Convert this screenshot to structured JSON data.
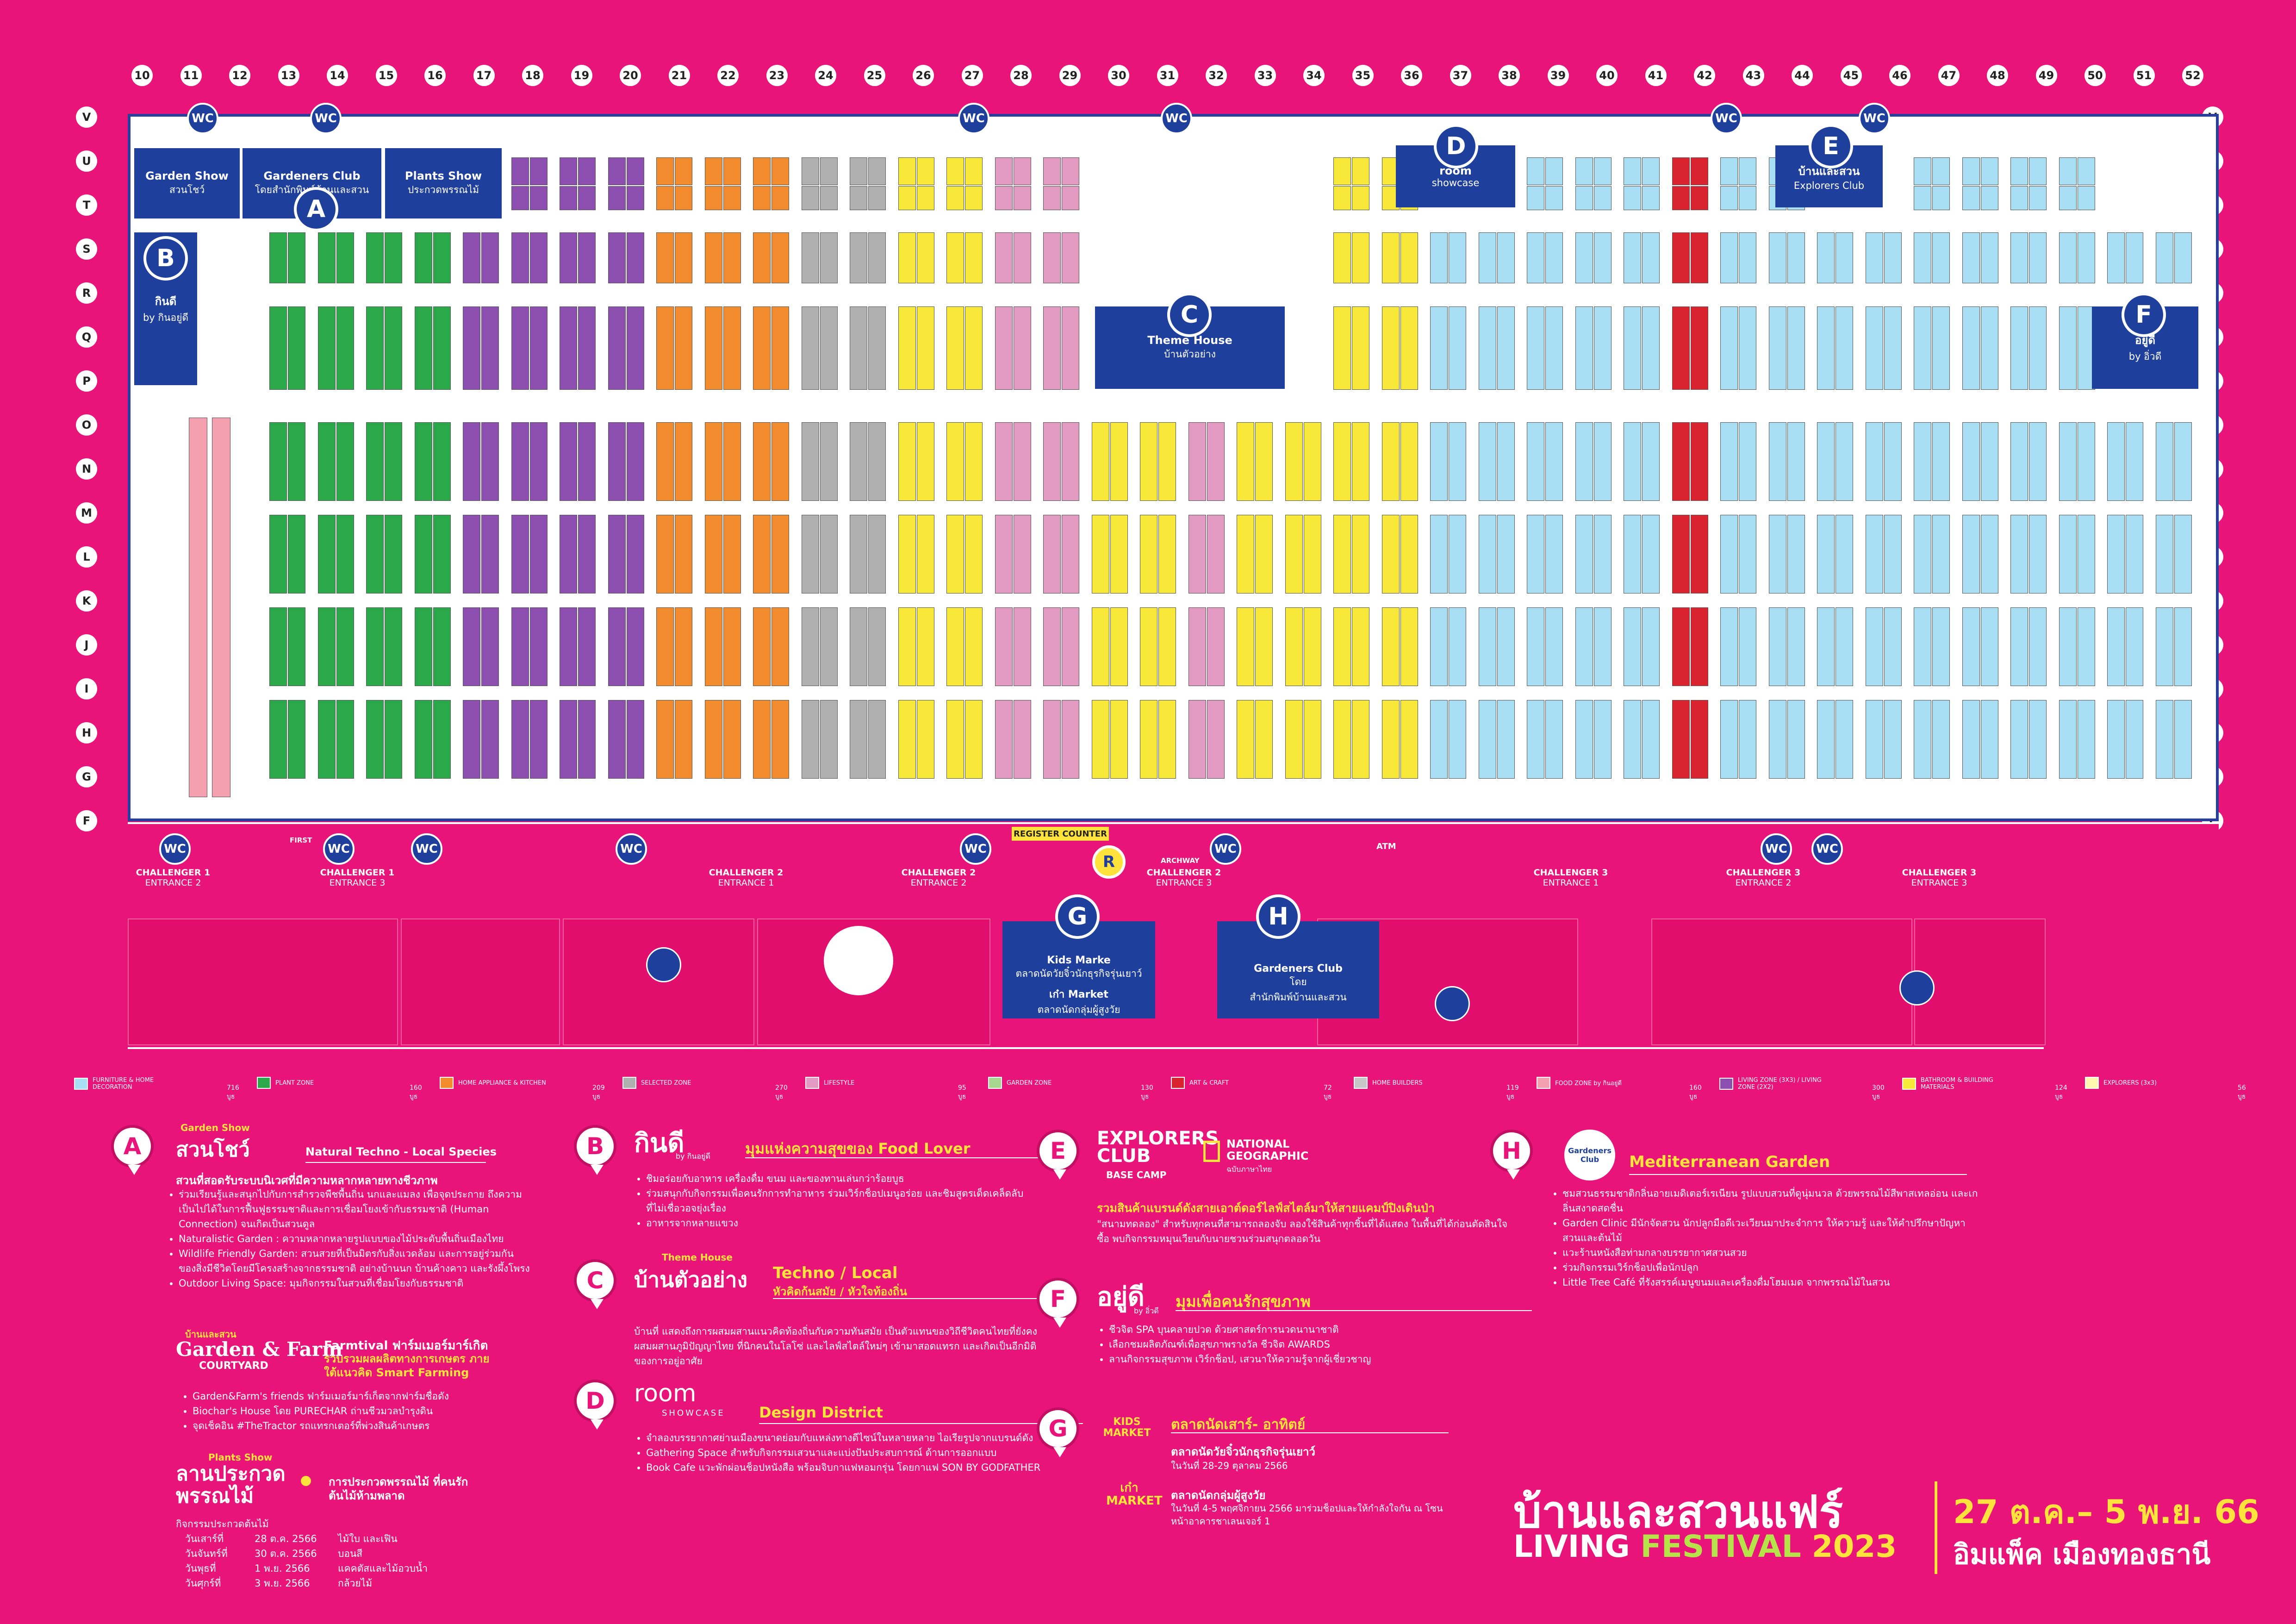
{
  "columns": [
    "10",
    "11",
    "12",
    "13",
    "14",
    "15",
    "16",
    "17",
    "18",
    "19",
    "20",
    "21",
    "22",
    "23",
    "24",
    "25",
    "26",
    "27",
    "28",
    "29",
    "30",
    "31",
    "32",
    "33",
    "34",
    "35",
    "36",
    "37",
    "38",
    "39",
    "40",
    "41",
    "42",
    "43",
    "44",
    "45",
    "46",
    "47",
    "48",
    "49",
    "50",
    "51",
    "52"
  ],
  "rows": [
    "V",
    "U",
    "T",
    "S",
    "R",
    "Q",
    "P",
    "O",
    "N",
    "M",
    "L",
    "K",
    "J",
    "I",
    "H",
    "G",
    "F"
  ],
  "zones_top": [
    {
      "id": "garden-show",
      "title": "Garden Show",
      "sub": "สวนโชว์"
    },
    {
      "id": "gardeners-club",
      "title": "Gardeners Club",
      "sub": "โดยสำนักพิมพ์บ้านและสวน"
    },
    {
      "id": "plants-show",
      "title": "Plants Show",
      "sub": "ประกวดพรรณไม้"
    },
    {
      "id": "room",
      "title": "room",
      "sub": "showcase"
    },
    {
      "id": "explorers",
      "title": "บ้านและสวน",
      "sub": "Explorers Club"
    },
    {
      "id": "theme-house",
      "title": "Theme House",
      "sub": "บ้านตัวอย่าง"
    },
    {
      "id": "kindee",
      "title": "กินดี",
      "sub": "by กินอยู่ดี"
    },
    {
      "id": "yoodee",
      "title": "อยู่ดี",
      "sub": "by อิ่วดี"
    }
  ],
  "pins": {
    "A": "A",
    "B": "B",
    "C": "C",
    "D": "D",
    "E": "E",
    "F": "F",
    "G": "G",
    "H": "H",
    "R": "R"
  },
  "wc_label": "WC",
  "entrances": [
    {
      "name": "CHALLENGER 1",
      "entrance": "ENTRANCE 2"
    },
    {
      "name": "CHALLENGER 1",
      "entrance": "ENTRANCE 3"
    },
    {
      "name": "CHALLENGER 2",
      "entrance": "ENTRANCE 1"
    },
    {
      "name": "CHALLENGER 2",
      "entrance": "ENTRANCE 2"
    },
    {
      "name": "CHALLENGER 2",
      "entrance": "ENTRANCE 3"
    },
    {
      "name": "CHALLENGER 3",
      "entrance": "ENTRANCE 1"
    },
    {
      "name": "CHALLENGER 3",
      "entrance": "ENTRANCE 2"
    },
    {
      "name": "CHALLENGER 3",
      "entrance": "ENTRANCE 3"
    }
  ],
  "misc": {
    "register": "REGISTER COUNTER",
    "archway": "ARCHWAY",
    "atm": "ATM",
    "first": "FIRST"
  },
  "outside": {
    "kids_title": "Kids Marke",
    "kids_sub": "ตลาดนัดวัยจิ๋วนักธุรกิจรุ่นเยาว์",
    "kids_title2": "เก๋า Market",
    "kids_sub2": "ตลาดนัดกลุ่มผู้สูงวัย",
    "gc_title": "Gardeners Club",
    "gc_sub": "โดย",
    "gc_sub2": "สำนักพิมพ์บ้านและสวน"
  },
  "legend": [
    {
      "label": "FURNITURE & HOME DECORATION",
      "count": "716 บูธ",
      "color": "#a9dff5"
    },
    {
      "label": "PLANT ZONE",
      "count": "160 บูธ",
      "color": "#2aa84a"
    },
    {
      "label": "HOME APPLIANCE & KITCHEN",
      "count": "209 บูธ",
      "color": "#f28a2e"
    },
    {
      "label": "SELECTED ZONE",
      "count": "270 บูธ",
      "color": "#b0b0b0"
    },
    {
      "label": "LIFESTYLE",
      "count": "95 บูธ",
      "color": "#e29ac2"
    },
    {
      "label": "GARDEN ZONE",
      "count": "130 บูธ",
      "color": "#a8d890"
    },
    {
      "label": "ART & CRAFT",
      "count": "72 บูธ",
      "color": "#d9232e"
    },
    {
      "label": "HOME BUILDERS",
      "count": "119 บูธ",
      "color": "#c7c7c7"
    },
    {
      "label": "FOOD ZONE by กินอยู่ดี",
      "count": "160 บูธ",
      "color": "#f4a0b0"
    },
    {
      "label": "LIVING ZONE (3X3) / LIVING ZONE (2X2)",
      "count": "300 บูธ",
      "color": "#8c4fb0"
    },
    {
      "label": "BATHROOM & BUILDING MATERIALS",
      "count": "124 บูธ",
      "color": "#f7e83a"
    },
    {
      "label": "EXPLORERS (3x3)",
      "count": "56 บูธ",
      "color": "#fff7b0"
    }
  ],
  "sections": {
    "A": {
      "small": "Garden Show",
      "title": "สวนโชว์",
      "head_right": "Natural Techno - Local Species",
      "head": "สวนที่สอดรับระบบนิเวศที่มีความหลากหลายทางชีวภาพ",
      "items": [
        "ร่วมเรียนรู้และสนุกไปกับการสำรวจพืชพื้นถิ่น นกและแมลง เพื่อจุดประกาย ถึงความเป็นไปได้ในการฟื้นฟูธรรมชาติและการเชื่อมโยงเข้ากับธรรมชาติ (Human Connection) จนเกิดเป็นสวนดูล",
        "Naturalistic Garden : ความหลากหลายรูปแบบของไม้ประดับพื้นถิ่นเมืองไทย",
        "Wildlife Friendly Garden: สวนสวยที่เป็นมิตรกับสิ่งแวดล้อม และการอยู่ร่วมกันของสิ่งมีชีวิตโดยมีโครงสร้างจากธรรมชาติ อย่างบ้านนก บ้านค้างคาว และรังผึ้งโพรง",
        "Outdoor Living Space: มุมกิจกรรมในสวนที่เชื่อมโยงกับธรรมชาติ"
      ]
    },
    "GF": {
      "small": "บ้านและสวน",
      "title": "Garden & Farm",
      "sub": "COURTYARD",
      "head": "Farmtival ฟาร์มเมอร์มาร์เกิต",
      "head2": "รวบรวมผลผลิตทางการเกษตร ภายใต้แนวคิด Smart Farming",
      "items": [
        "Garden&Farm's friends ฟาร์มเมอร์มาร์เก็ตจากฟาร์มชื่อดัง",
        "Biochar's House โดย PURECHAR ถ่านชีวมวลบำรุงดิน",
        "จุดเช็คอิน #TheTractor รถแทรกเตอร์ที่พ่วงสินค้าเกษตร"
      ]
    },
    "P": {
      "small": "Plants Show",
      "title": "ลานประกวด พรรณไม้",
      "head": "การประกวดพรรณไม้ ที่คนรักต้นไม้ห้ามพลาด",
      "sub": "กิจกรรมประกวดต้นไม้",
      "schedule": [
        {
          "day": "วันเสาร์ที่",
          "date": "28 ต.ค. 2566",
          "item": "ไม้ใบ และเฟิน"
        },
        {
          "day": "วันจันทร์ที่",
          "date": "30 ต.ค. 2566",
          "item": "บอนสี"
        },
        {
          "day": "วันพุธที่",
          "date": "1 พ.ย. 2566",
          "item": "แคคตัสและไม้อวบน้ำ"
        },
        {
          "day": "วันศุกร์ที่",
          "date": "3 พ.ย. 2566",
          "item": "กล้วยไม้"
        }
      ]
    },
    "B": {
      "title": "กินดี",
      "brand": "by กินอยู่ดี",
      "head": "มุมแห่งความสุขของ Food Lover",
      "items": [
        "ชิมอร่อยกับอาหาร เครื่องดื่ม ขนม และของทานเล่นกว่าร้อยบูธ",
        "ร่วมสนุกกับกิจกรรมเพื่อคนรักการทำอาหาร ร่วมเวิร์กช็อปเมนูอร่อย และชิมสูตรเด็ดเคล็ดลับที่ไม่เชื่อวอจยุ่งเรื่อง",
        "อาหารจากหลายแขวง"
      ]
    },
    "C": {
      "small": "Theme House",
      "title": "บ้านตัวอย่าง",
      "head": "Techno / Local",
      "head2": "หัวคิดก้นสมัย / หัวใจท้องถิ่น",
      "text": "บ้านที่ แสดงถึงการผสมผสานแนวคิดท้องถิ่นกับความทันสมัย เป็นตัวแทนของวิถีชีวิตคนไทยที่ยังคงผสมผสานภูมิปัญญาไทย ที่นิกคนในโลโซ่ และไลฟ์สไตล์ใหม่ๆ เข้ามาสอดแทรก และเกิดเป็นอีกมิติของการอยู่อาศัย"
    },
    "D": {
      "title": "room",
      "sub": "SHOWCASE",
      "head": "Design District",
      "items": [
        "จำลองบรรยากาศย่านเมืองขนาดย่อมกับแหล่งทางดีไซน์ในหลายหลาย ไอเรียรูปจากแบรนด์ดัง",
        "Gathering Space สำหรับกิจกรรมเสวนาและแบ่งปันประสบการณ์ ด้านการออกแบบ",
        "Book Cafe แวะพักผ่อนช็อปหนังสือ พร้อมจิบกาแฟหอมกรุ่น โดยกาแฟ SON BY GODFATHER"
      ]
    },
    "E": {
      "title": "EXPLORERS CLUB",
      "sub": "BASE CAMP",
      "brand": "NATIONAL GEOGRAPHIC",
      "brand_sub": "ฉบับภาษาไทย",
      "head": "รวมสินค้าแบรนด์ดังสายเอาต์ดอร์ไลฟ์สไตล์มาให้สายแคมป์ปิงเดินป่า",
      "text": "\"สนามทดลอง\" สำหรับทุกคนที่สามารถลองจับ ลองใช้สินค้าทุกชิ้นที่ได้แสดง ในพื้นที่ได้ก่อนตัดสินใจซื้อ พบกิจกรรมหมุนเวียนกับนายชวนร่วมสนุกตลอดวัน"
    },
    "F": {
      "title": "อยู่ดี",
      "brand": "by อิ่วดี",
      "head": "มุมเพื่อคนรักสุขภาพ",
      "items": [
        "ชีวจิต SPA บุนคลายปวด ด้วยศาสตร์การนวดนานาชาติ",
        "เลือกชมผลิตภัณฑ์เพื่อสุขภาพรางวัล ชีวจิต AWARDS",
        "ลานกิจกรรมสุขภาพ เวิร์กช็อป, เสวนาให้ความรู้จากผู้เชี่ยวชาญ"
      ]
    },
    "G": {
      "head": "ตลาดนัดเสาร์- อาทิตย์",
      "kids": "KIDS MARKET",
      "kao": "เก๋า MARKET",
      "kids_title": "ตลาดนัดวัยจิ๋วนักธุรกิจรุ่นเยาว์",
      "kids_date": "ในวันที่ 28-29 ตุลาคม 2566",
      "kao_title": "ตลาดนัดกลุ่มผู้สูงวัย",
      "kao_date": "ในวันที่ 4-5 พฤศจิกายน 2566 มาร่วมช็อปและให้กำลังใจกัน ณ โซนหน้าอาคารชาเลนเจอร์ 1"
    },
    "H": {
      "title": "Gardeners Club",
      "head": "Mediterranean Garden",
      "items": [
        "ชมสวนธรรมชาติกลิ่นอายเมดิเตอร์เรเนียน รูปแบบสวนที่ดูนุ่มนวล ด้วยพรรณไม้สีพาสเทลอ่อน และเกลิ่นสงาดสดชื่น",
        "Garden Clinic มีนักจัดสวน นักปลูกมือดีเวะเวียนมาประจำการ ให้ความรู้ และให้คำปรึกษาปัญหาสวนและต้นไม้",
        "แวะร้านหนังสือท่ามกลางบรรยากาศสวนสวย",
        "ร่วมกิจกรรมเวิร์กช็อปเพื่อนักปลูก",
        "Little Tree Café ที่รังสรรค์เมนูขนมและเครื่องดื่มโฮมเมด จากพรรณไม้ในสวน"
      ]
    }
  },
  "event": {
    "title": "บ้านและสวนแฟร์",
    "fest1": "LIVING ",
    "fest2": "FESTIVAL ",
    "fest3": "2023",
    "dates": "27 ต.ค.– 5 พ.ย. 66",
    "venue": "อิมแพ็ค เมืองทองธานี"
  }
}
